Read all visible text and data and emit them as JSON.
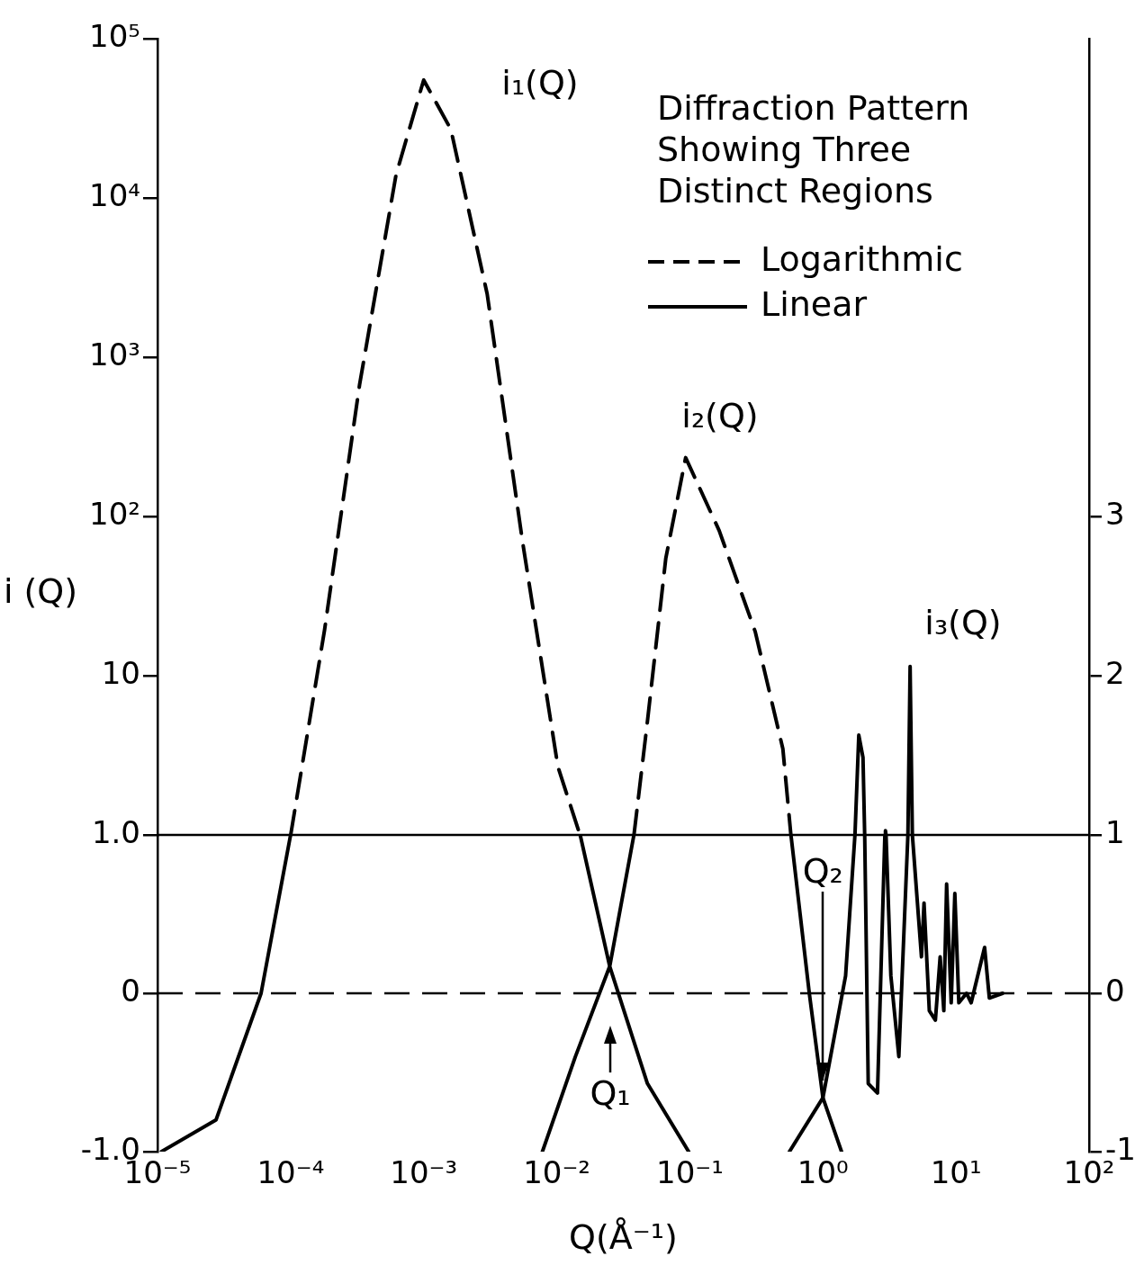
{
  "chart_data": [
    {
      "type": "line",
      "ylabel": "i (Q)",
      "legend_title": "Diffraction Pattern Showing Three Distinct Regions",
      "legend": "top right",
      "log": "xy",
      "grid": false,
      "marker": "none",
      "tick_labels": "y",
      "xlim": [
        1e-05,
        100
      ],
      "ylim": [
        1,
        100000
      ],
      "yticks": [
        10,
        {
          "value": 100,
          "label": "10²"
        },
        {
          "value": 1000,
          "label": "10³"
        },
        {
          "value": 10000,
          "label": "10⁴"
        },
        {
          "value": 100000,
          "label": "10⁵"
        }
      ],
      "y2lim": [
        1,
        6
      ],
      "y2ticks": [
        2,
        3
      ],
      "series": [
        {
          "name": "Logarithmic",
          "color": "#000000",
          "line_style": "dashed",
          "x": [
            0.0001,
            0.00018,
            0.00033,
            0.00062,
            0.001,
            0.0016,
            0.003,
            0.0055,
            0.0102,
            0.015,
            0.02,
            0.038,
            0.048,
            0.066,
            0.093,
            0.166,
            0.31,
            0.5,
            0.575
          ],
          "values": [
            1,
            19.5,
            676,
            14000,
            55000,
            27000,
            2500,
            72,
            2.7,
            1,
            null,
            1,
            5.2,
            55,
            235,
            82,
            19,
            3.5,
            1
          ]
        },
        {
          "name": "Linear",
          "color": "#000000",
          "line_style": "solid",
          "axis": "y2",
          "x": [
            1.74,
            1.86,
            2.0,
            2.06,
            2.5,
            2.92,
            2.95,
            2.98,
            3.7,
            4.35,
            4.52,
            4.7
          ],
          "values": [
            1,
            1.63,
            1.49,
            1,
            null,
            1,
            1.03,
            1,
            null,
            1,
            2.06,
            1
          ]
        }
      ],
      "annotations": [
        "i₁(Q)",
        "i₂(Q)",
        "i₃(Q)"
      ]
    },
    {
      "type": "line",
      "xlabel": "Q(Å⁻¹)",
      "log": "x",
      "grid": false,
      "marker": "none",
      "xlim": [
        1e-05,
        100
      ],
      "xticks": [
        {
          "value": 1e-05,
          "label": "10⁻⁵"
        },
        {
          "value": 0.0001,
          "label": "10⁻⁴"
        },
        {
          "value": 0.001,
          "label": "10⁻³"
        },
        {
          "value": 0.01,
          "label": "10⁻²"
        },
        {
          "value": 0.1,
          "label": "10⁻¹"
        },
        {
          "value": 1,
          "label": "10⁰"
        },
        {
          "value": 10,
          "label": "10¹"
        },
        {
          "value": 100,
          "label": "10²"
        }
      ],
      "ylim": [
        -1,
        1
      ],
      "yticks": [
        {
          "value": -1,
          "label": "-1.0"
        },
        0,
        {
          "value": 1,
          "label": "1.0"
        }
      ],
      "y2lim": [
        -1,
        1
      ],
      "y2ticks": [
        -1,
        0,
        1
      ],
      "series": [
        {
          "color": "#000000",
          "line_style": "solid",
          "x": [
            1.07e-05,
            2.75e-05,
            6e-05,
            0.0001,
            0.001,
            0.015,
            0.025,
            0.048,
            0.098,
            0.05,
            0.0078,
            0.0138,
            0.025,
            0.038,
            0.2,
            0.575,
            0.79,
            1.0,
            1.38
          ],
          "values": [
            -1,
            -0.8,
            0,
            1,
            null,
            1,
            0.17,
            -0.57,
            -1,
            null,
            -1,
            -0.4,
            0.17,
            1,
            null,
            1,
            0,
            -0.66,
            -1
          ]
        },
        {
          "color": "#000000",
          "line_style": "solid",
          "axis": "y2",
          "x": [
            0.56,
            1.0,
            1.48,
            1.74,
            1.9,
            2.06,
            2.19,
            2.57,
            2.92,
            2.95,
            2.98,
            3.24,
            3.72,
            4.35,
            4.52,
            4.7,
            5.13,
            5.5,
            5.75,
            6.3,
            7.0,
            7.6,
            8.1,
            8.5,
            9.2,
            9.8,
            10.5,
            12,
            13,
            16.4,
            17.8,
            22.4
          ],
          "values": [
            -1,
            -0.66,
            0.11,
            1,
            null,
            1,
            -0.57,
            -0.63,
            1,
            null,
            1,
            0.11,
            -0.4,
            1,
            null,
            1,
            0.57,
            0.23,
            0.57,
            -0.11,
            -0.17,
            0.23,
            -0.11,
            0.69,
            -0.06,
            0.63,
            -0.06,
            0,
            -0.06,
            0.29,
            -0.03,
            0
          ]
        }
      ],
      "ref_lines": [
        {
          "axis": "y",
          "value": 0,
          "color": "#000000",
          "line_style": "dashed"
        }
      ],
      "annotations": [
        "Q₁",
        {
          "text": "Q₂",
          "x": 1.0,
          "y": -0.55
        }
      ]
    }
  ]
}
